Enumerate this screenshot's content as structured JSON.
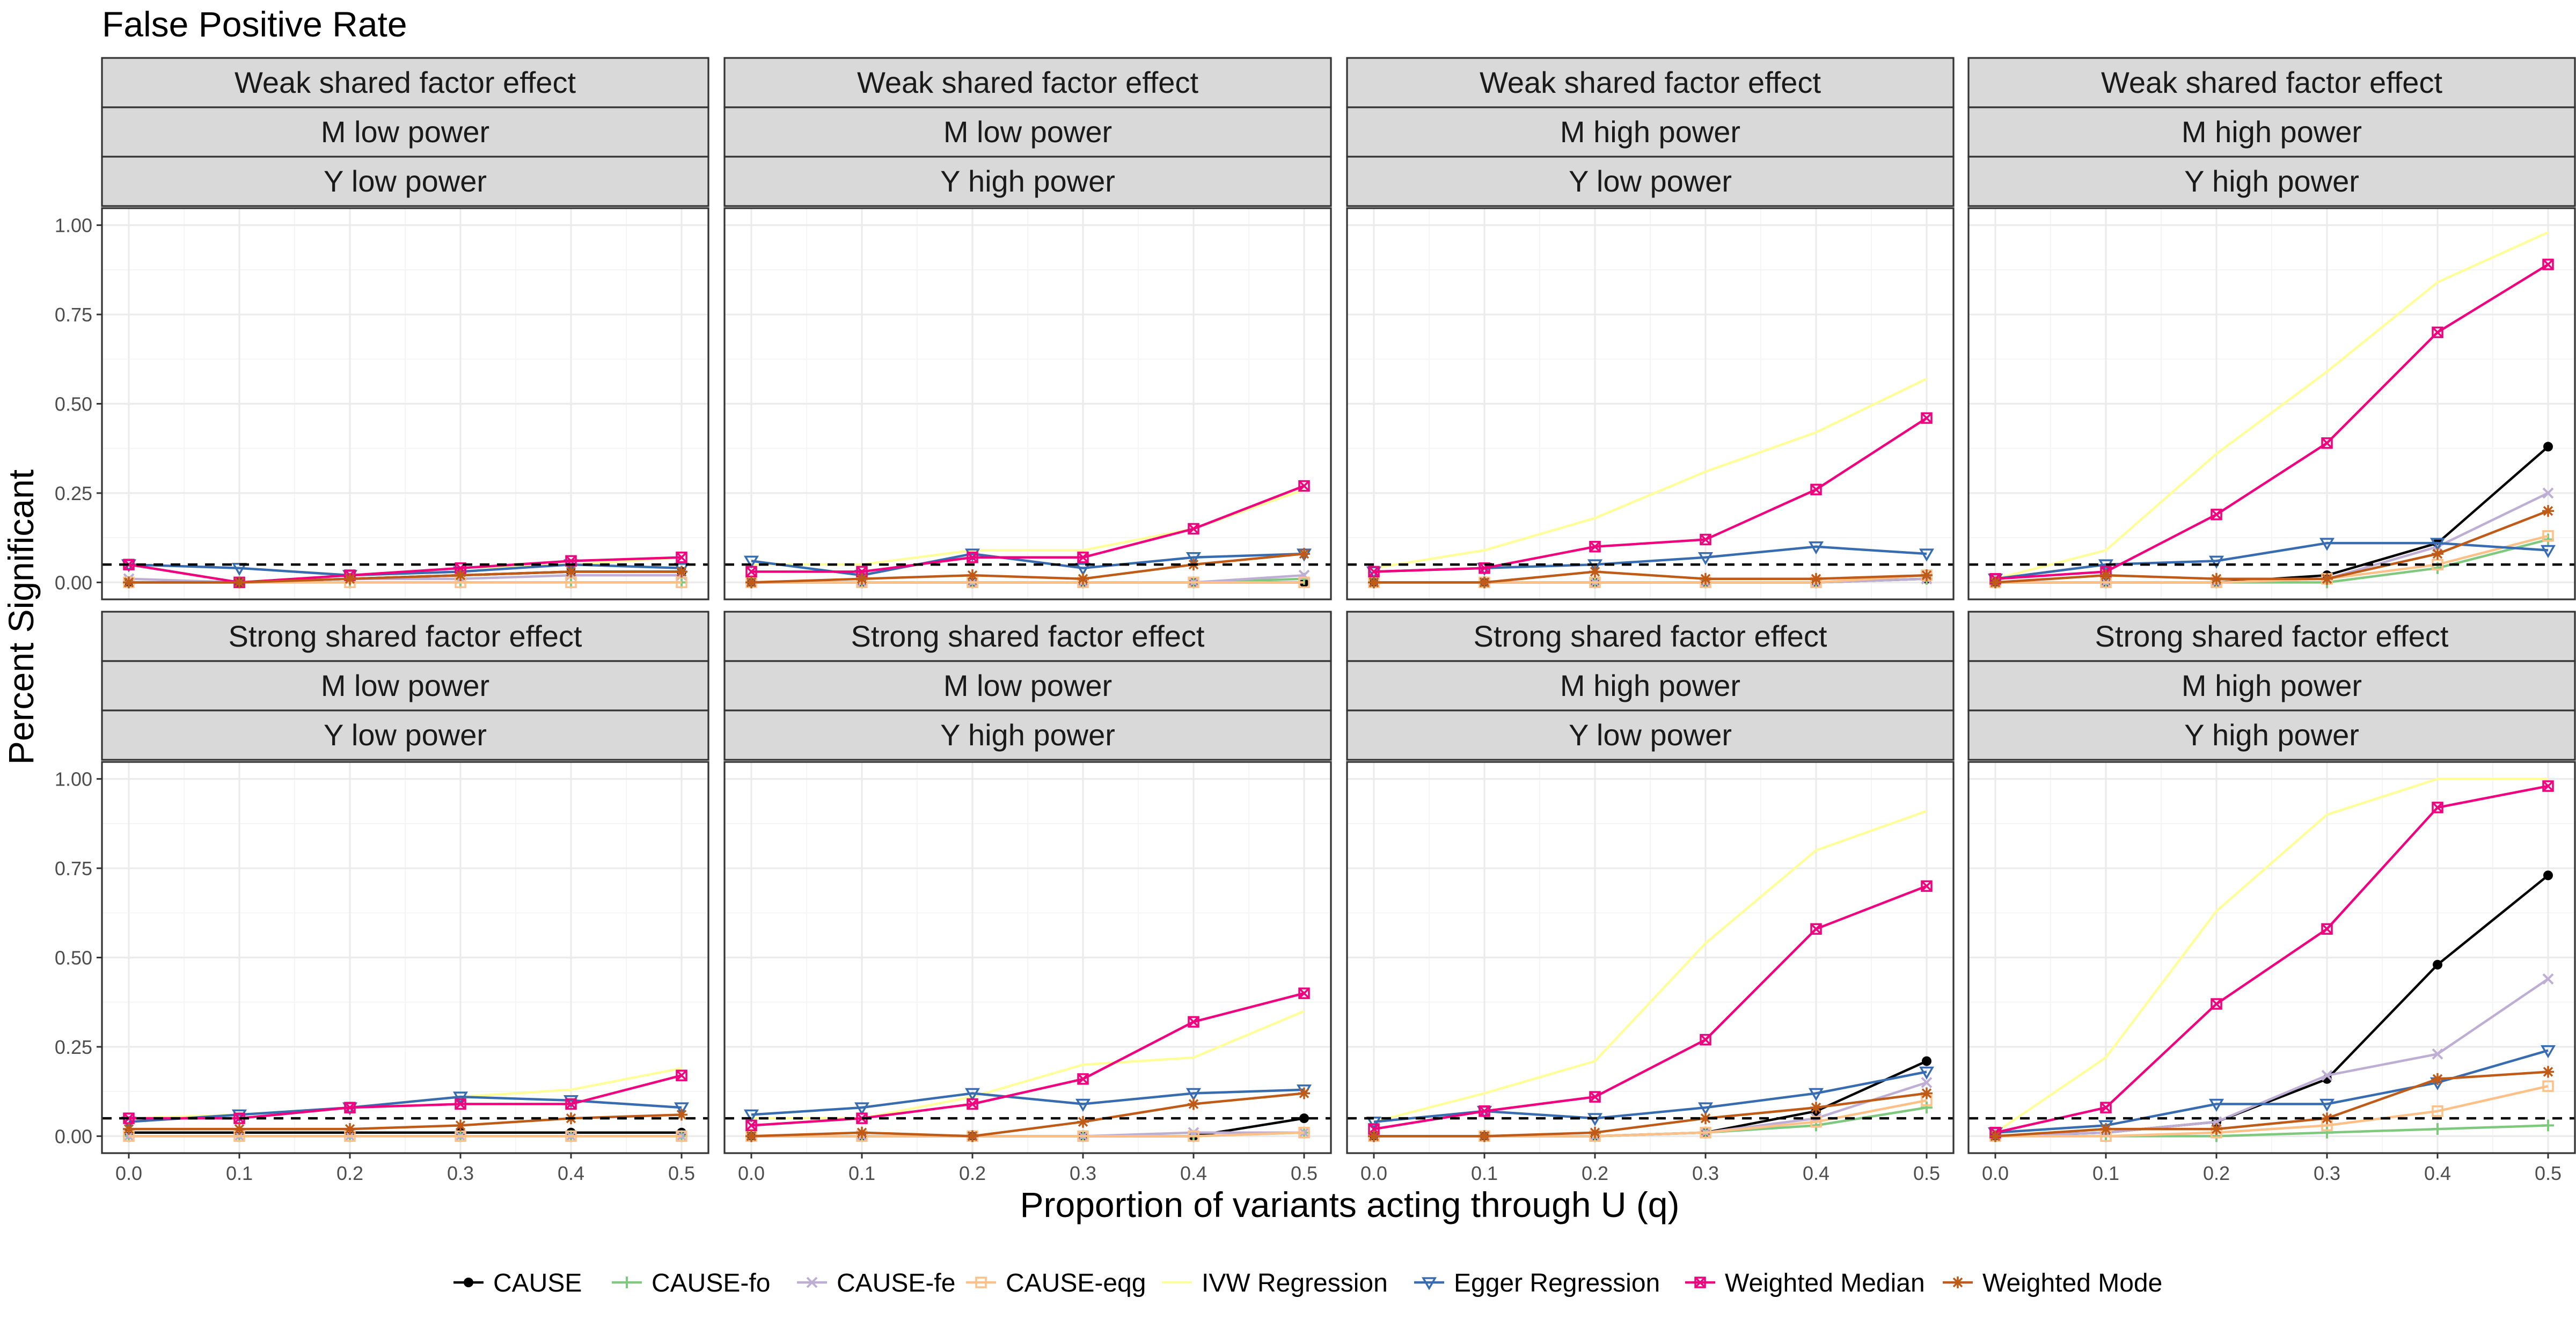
{
  "chart_data": {
    "type": "line",
    "title": "False Positive Rate",
    "xlabel": "Proportion of variants acting through U (q)",
    "ylabel": "Percent Significant",
    "x": [
      0.0,
      0.1,
      0.2,
      0.3,
      0.4,
      0.5
    ],
    "x_tick_labels": [
      "0.0",
      "0.1",
      "0.2",
      "0.3",
      "0.4",
      "0.5"
    ],
    "y_tick_values": [
      0,
      0.25,
      0.5,
      0.75,
      1.0
    ],
    "y_tick_labels": [
      "0.00",
      "0.25",
      "0.50",
      "0.75",
      "1.00"
    ],
    "xlim": [
      0,
      0.5
    ],
    "ylim": [
      0,
      1.0
    ],
    "reference_line_y": 0.05,
    "grid": true,
    "legend_position": "bottom",
    "series_styles": [
      {
        "name": "CAUSE",
        "color": "#000000",
        "marker": "dot"
      },
      {
        "name": "CAUSE-fo",
        "color": "#7fc97f",
        "marker": "plus"
      },
      {
        "name": "CAUSE-fe",
        "color": "#beaed4",
        "marker": "x"
      },
      {
        "name": "CAUSE-eqg",
        "color": "#fdc086",
        "marker": "square"
      },
      {
        "name": "IVW Regression",
        "color": "#ffff99",
        "marker": "none"
      },
      {
        "name": "Egger Regression",
        "color": "#386cb0",
        "marker": "triangle-down"
      },
      {
        "name": "Weighted Median",
        "color": "#f0027f",
        "marker": "square-x"
      },
      {
        "name": "Weighted Mode",
        "color": "#bf5b17",
        "marker": "asterisk"
      }
    ],
    "panels": [
      {
        "strips": [
          "Weak shared factor effect",
          "M low power",
          "Y low power"
        ],
        "series": [
          {
            "name": "CAUSE",
            "values": [
              0.0,
              0.0,
              0.01,
              0.02,
              0.03,
              0.03
            ]
          },
          {
            "name": "CAUSE-fo",
            "values": [
              0.0,
              0.0,
              0.0,
              0.0,
              0.0,
              0.0
            ]
          },
          {
            "name": "CAUSE-fe",
            "values": [
              0.01,
              0.0,
              0.01,
              0.01,
              0.02,
              0.02
            ]
          },
          {
            "name": "CAUSE-eqg",
            "values": [
              0.0,
              0.0,
              0.0,
              0.0,
              0.0,
              0.0
            ]
          },
          {
            "name": "IVW Regression",
            "values": [
              0.05,
              0.0,
              0.02,
              0.04,
              0.05,
              0.07
            ]
          },
          {
            "name": "Egger Regression",
            "values": [
              0.05,
              0.04,
              0.02,
              0.03,
              0.05,
              0.04
            ]
          },
          {
            "name": "Weighted Median",
            "values": [
              0.05,
              0.0,
              0.02,
              0.04,
              0.06,
              0.07
            ]
          },
          {
            "name": "Weighted Mode",
            "values": [
              0.0,
              0.0,
              0.01,
              0.02,
              0.03,
              0.03
            ]
          }
        ]
      },
      {
        "strips": [
          "Weak shared factor effect",
          "M low power",
          "Y high power"
        ],
        "series": [
          {
            "name": "CAUSE",
            "values": [
              0.0,
              0.0,
              0.0,
              0.0,
              0.0,
              0.0
            ]
          },
          {
            "name": "CAUSE-fo",
            "values": [
              0.0,
              0.0,
              0.0,
              0.0,
              0.0,
              0.01
            ]
          },
          {
            "name": "CAUSE-fe",
            "values": [
              0.0,
              0.0,
              0.0,
              0.0,
              0.0,
              0.02
            ]
          },
          {
            "name": "CAUSE-eqg",
            "values": [
              0.0,
              0.0,
              0.0,
              0.0,
              0.0,
              0.0
            ]
          },
          {
            "name": "IVW Regression",
            "values": [
              0.05,
              0.05,
              0.09,
              0.09,
              0.15,
              0.26
            ]
          },
          {
            "name": "Egger Regression",
            "values": [
              0.06,
              0.02,
              0.08,
              0.04,
              0.07,
              0.08
            ]
          },
          {
            "name": "Weighted Median",
            "values": [
              0.03,
              0.03,
              0.07,
              0.07,
              0.15,
              0.27
            ]
          },
          {
            "name": "Weighted Mode",
            "values": [
              0.0,
              0.01,
              0.02,
              0.01,
              0.05,
              0.08
            ]
          }
        ]
      },
      {
        "strips": [
          "Weak shared factor effect",
          "M high power",
          "Y low power"
        ],
        "series": [
          {
            "name": "CAUSE",
            "values": [
              0.0,
              0.0,
              0.0,
              0.0,
              0.0,
              0.01
            ]
          },
          {
            "name": "CAUSE-fo",
            "values": [
              0.0,
              0.0,
              0.0,
              0.0,
              0.0,
              0.01
            ]
          },
          {
            "name": "CAUSE-fe",
            "values": [
              0.0,
              0.0,
              0.0,
              0.0,
              0.0,
              0.01
            ]
          },
          {
            "name": "CAUSE-eqg",
            "values": [
              0.0,
              0.0,
              0.0,
              0.0,
              0.0,
              0.02
            ]
          },
          {
            "name": "IVW Regression",
            "values": [
              0.04,
              0.09,
              0.18,
              0.31,
              0.42,
              0.57
            ]
          },
          {
            "name": "Egger Regression",
            "values": [
              0.03,
              0.04,
              0.05,
              0.07,
              0.1,
              0.08
            ]
          },
          {
            "name": "Weighted Median",
            "values": [
              0.03,
              0.04,
              0.1,
              0.12,
              0.26,
              0.46
            ]
          },
          {
            "name": "Weighted Mode",
            "values": [
              0.0,
              0.0,
              0.03,
              0.01,
              0.01,
              0.02
            ]
          }
        ]
      },
      {
        "strips": [
          "Weak shared factor effect",
          "M high power",
          "Y high power"
        ],
        "series": [
          {
            "name": "CAUSE",
            "values": [
              0.0,
              0.0,
              0.0,
              0.02,
              0.11,
              0.38
            ]
          },
          {
            "name": "CAUSE-fo",
            "values": [
              0.0,
              0.0,
              0.0,
              0.0,
              0.04,
              0.12
            ]
          },
          {
            "name": "CAUSE-fe",
            "values": [
              0.0,
              0.0,
              0.0,
              0.01,
              0.1,
              0.25
            ]
          },
          {
            "name": "CAUSE-eqg",
            "values": [
              0.0,
              0.0,
              0.0,
              0.01,
              0.05,
              0.13
            ]
          },
          {
            "name": "IVW Regression",
            "values": [
              0.01,
              0.09,
              0.36,
              0.59,
              0.84,
              0.98
            ]
          },
          {
            "name": "Egger Regression",
            "values": [
              0.01,
              0.05,
              0.06,
              0.11,
              0.11,
              0.09
            ]
          },
          {
            "name": "Weighted Median",
            "values": [
              0.01,
              0.03,
              0.19,
              0.39,
              0.7,
              0.89
            ]
          },
          {
            "name": "Weighted Mode",
            "values": [
              0.0,
              0.02,
              0.01,
              0.01,
              0.08,
              0.2
            ]
          }
        ]
      },
      {
        "strips": [
          "Strong shared factor effect",
          "M low power",
          "Y low power"
        ],
        "series": [
          {
            "name": "CAUSE",
            "values": [
              0.01,
              0.01,
              0.01,
              0.01,
              0.01,
              0.01
            ]
          },
          {
            "name": "CAUSE-fo",
            "values": [
              0.0,
              0.0,
              0.0,
              0.0,
              0.0,
              0.0
            ]
          },
          {
            "name": "CAUSE-fe",
            "values": [
              0.0,
              0.0,
              0.0,
              0.0,
              0.0,
              0.0
            ]
          },
          {
            "name": "CAUSE-eqg",
            "values": [
              0.0,
              0.0,
              0.0,
              0.0,
              0.0,
              0.0
            ]
          },
          {
            "name": "IVW Regression",
            "values": [
              0.05,
              0.06,
              0.08,
              0.11,
              0.13,
              0.19
            ]
          },
          {
            "name": "Egger Regression",
            "values": [
              0.04,
              0.06,
              0.08,
              0.11,
              0.1,
              0.08
            ]
          },
          {
            "name": "Weighted Median",
            "values": [
              0.05,
              0.05,
              0.08,
              0.09,
              0.09,
              0.17
            ]
          },
          {
            "name": "Weighted Mode",
            "values": [
              0.02,
              0.02,
              0.02,
              0.03,
              0.05,
              0.06
            ]
          }
        ]
      },
      {
        "strips": [
          "Strong shared factor effect",
          "M low power",
          "Y high power"
        ],
        "series": [
          {
            "name": "CAUSE",
            "values": [
              0.0,
              0.0,
              0.0,
              0.0,
              0.0,
              0.05
            ]
          },
          {
            "name": "CAUSE-fo",
            "values": [
              0.0,
              0.0,
              0.0,
              0.0,
              0.0,
              0.01
            ]
          },
          {
            "name": "CAUSE-fe",
            "values": [
              0.0,
              0.0,
              0.0,
              0.0,
              0.01,
              0.01
            ]
          },
          {
            "name": "CAUSE-eqg",
            "values": [
              0.0,
              0.0,
              0.0,
              0.0,
              0.0,
              0.01
            ]
          },
          {
            "name": "IVW Regression",
            "values": [
              0.05,
              0.05,
              0.11,
              0.2,
              0.22,
              0.35
            ]
          },
          {
            "name": "Egger Regression",
            "values": [
              0.06,
              0.08,
              0.12,
              0.09,
              0.12,
              0.13
            ]
          },
          {
            "name": "Weighted Median",
            "values": [
              0.03,
              0.05,
              0.09,
              0.16,
              0.32,
              0.4
            ]
          },
          {
            "name": "Weighted Mode",
            "values": [
              0.0,
              0.01,
              0.0,
              0.04,
              0.09,
              0.12
            ]
          }
        ]
      },
      {
        "strips": [
          "Strong shared factor effect",
          "M high power",
          "Y low power"
        ],
        "series": [
          {
            "name": "CAUSE",
            "values": [
              0.0,
              0.0,
              0.0,
              0.01,
              0.07,
              0.21
            ]
          },
          {
            "name": "CAUSE-fo",
            "values": [
              0.0,
              0.0,
              0.0,
              0.01,
              0.03,
              0.08
            ]
          },
          {
            "name": "CAUSE-fe",
            "values": [
              0.0,
              0.0,
              0.0,
              0.01,
              0.05,
              0.15
            ]
          },
          {
            "name": "CAUSE-eqg",
            "values": [
              0.0,
              0.0,
              0.0,
              0.01,
              0.04,
              0.1
            ]
          },
          {
            "name": "IVW Regression",
            "values": [
              0.04,
              0.12,
              0.21,
              0.54,
              0.8,
              0.91
            ]
          },
          {
            "name": "Egger Regression",
            "values": [
              0.04,
              0.07,
              0.05,
              0.08,
              0.12,
              0.18
            ]
          },
          {
            "name": "Weighted Median",
            "values": [
              0.02,
              0.07,
              0.11,
              0.27,
              0.58,
              0.7
            ]
          },
          {
            "name": "Weighted Mode",
            "values": [
              0.0,
              0.0,
              0.01,
              0.05,
              0.08,
              0.12
            ]
          }
        ]
      },
      {
        "strips": [
          "Strong shared factor effect",
          "M high power",
          "Y high power"
        ],
        "series": [
          {
            "name": "CAUSE",
            "values": [
              0.0,
              0.01,
              0.04,
              0.16,
              0.48,
              0.73
            ]
          },
          {
            "name": "CAUSE-fo",
            "values": [
              0.0,
              0.0,
              0.0,
              0.01,
              0.02,
              0.03
            ]
          },
          {
            "name": "CAUSE-fe",
            "values": [
              0.0,
              0.01,
              0.04,
              0.17,
              0.23,
              0.44
            ]
          },
          {
            "name": "CAUSE-eqg",
            "values": [
              0.0,
              0.0,
              0.01,
              0.03,
              0.07,
              0.14
            ]
          },
          {
            "name": "IVW Regression",
            "values": [
              0.01,
              0.22,
              0.63,
              0.9,
              1.0,
              1.0
            ]
          },
          {
            "name": "Egger Regression",
            "values": [
              0.01,
              0.03,
              0.09,
              0.09,
              0.15,
              0.24
            ]
          },
          {
            "name": "Weighted Median",
            "values": [
              0.01,
              0.08,
              0.37,
              0.58,
              0.92,
              0.98
            ]
          },
          {
            "name": "Weighted Mode",
            "values": [
              0.0,
              0.02,
              0.02,
              0.05,
              0.16,
              0.18
            ]
          }
        ]
      }
    ]
  }
}
